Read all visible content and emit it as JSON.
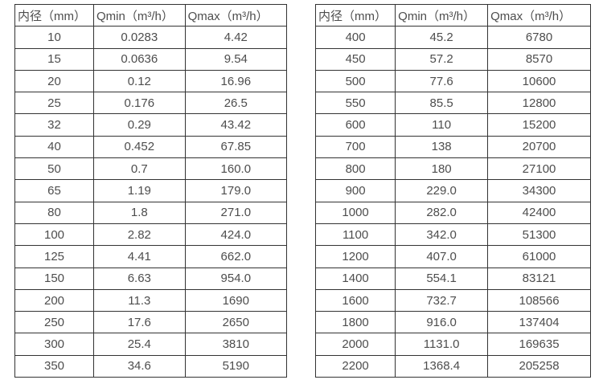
{
  "page": {
    "background_color": "#ffffff",
    "border_color": "#333333",
    "text_color": "#4d4d4d"
  },
  "tables": [
    {
      "name": "flow-spec-table-small-diameters",
      "columns": [
        "内径（mm）",
        "Qmin（m³/h）",
        "Qmax（m³/h）"
      ],
      "rows": [
        [
          "10",
          "0.0283",
          "4.42"
        ],
        [
          "15",
          "0.0636",
          "9.54"
        ],
        [
          "20",
          "0.12",
          "16.96"
        ],
        [
          "25",
          "0.176",
          "26.5"
        ],
        [
          "32",
          "0.29",
          "43.42"
        ],
        [
          "40",
          "0.452",
          "67.85"
        ],
        [
          "50",
          "0.7",
          "160.0"
        ],
        [
          "65",
          "1.19",
          "179.0"
        ],
        [
          "80",
          "1.8",
          "271.0"
        ],
        [
          "100",
          "2.82",
          "424.0"
        ],
        [
          "125",
          "4.41",
          "662.0"
        ],
        [
          "150",
          "6.63",
          "954.0"
        ],
        [
          "200",
          "11.3",
          "1690"
        ],
        [
          "250",
          "17.6",
          "2650"
        ],
        [
          "300",
          "25.4",
          "3810"
        ],
        [
          "350",
          "34.6",
          "5190"
        ]
      ]
    },
    {
      "name": "flow-spec-table-large-diameters",
      "columns": [
        "内径（mm）",
        "Qmin（m³/h）",
        "Qmax（m³/h）"
      ],
      "rows": [
        [
          "400",
          "45.2",
          "6780"
        ],
        [
          "450",
          "57.2",
          "8570"
        ],
        [
          "500",
          "77.6",
          "10600"
        ],
        [
          "550",
          "85.5",
          "12800"
        ],
        [
          "600",
          "110",
          "15200"
        ],
        [
          "700",
          "138",
          "20700"
        ],
        [
          "800",
          "180",
          "27100"
        ],
        [
          "900",
          "229.0",
          "34300"
        ],
        [
          "1000",
          "282.0",
          "42400"
        ],
        [
          "1100",
          "342.0",
          "51300"
        ],
        [
          "1200",
          "407.0",
          "61000"
        ],
        [
          "1400",
          "554.1",
          "83121"
        ],
        [
          "1600",
          "732.7",
          "108566"
        ],
        [
          "1800",
          "916.0",
          "137404"
        ],
        [
          "2000",
          "1131.0",
          "169635"
        ],
        [
          "2200",
          "1368.4",
          "205258"
        ]
      ]
    }
  ]
}
